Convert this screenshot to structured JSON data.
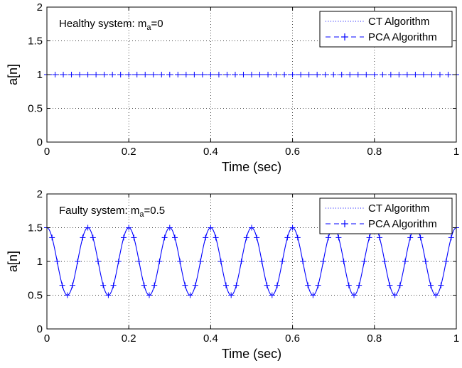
{
  "chart_data": [
    {
      "type": "line",
      "annotation": {
        "prefix": "Healthy system: m",
        "sub": "a",
        "suffix": "=0"
      },
      "xlabel": "Time (sec)",
      "ylabel": "a[n]",
      "xlim": [
        0,
        1
      ],
      "ylim": [
        0,
        2
      ],
      "xticks": [
        "0",
        "0.2",
        "0.4",
        "0.6",
        "0.8",
        "1"
      ],
      "yticks": [
        "0",
        "0.5",
        "1",
        "1.5",
        "2"
      ],
      "grid": true,
      "legend_position": "top-right",
      "series": [
        {
          "name": "CT Algorithm",
          "style": "dotted",
          "color": "#0000ff",
          "function": "constant",
          "offset": 1,
          "amplitude": 0,
          "frequency_hz": 10,
          "x_range": [
            0,
            1
          ]
        },
        {
          "name": "PCA Algorithm",
          "style": "dashed-plus",
          "color": "#0000ff",
          "function": "constant",
          "offset": 1,
          "amplitude": 0,
          "frequency_hz": 10,
          "x_range": [
            0,
            1
          ],
          "marker_step": 0.02
        }
      ]
    },
    {
      "type": "line",
      "annotation": {
        "prefix": "Faulty system: m",
        "sub": "a",
        "suffix": "=0.5"
      },
      "xlabel": "Time (sec)",
      "ylabel": "a[n]",
      "xlim": [
        0,
        1
      ],
      "ylim": [
        0,
        2
      ],
      "xticks": [
        "0",
        "0.2",
        "0.4",
        "0.6",
        "0.8",
        "1"
      ],
      "yticks": [
        "0",
        "0.5",
        "1",
        "1.5",
        "2"
      ],
      "grid": true,
      "legend_position": "top-right",
      "series": [
        {
          "name": "CT Algorithm",
          "style": "solid",
          "color": "#0000ff",
          "function": "1 + 0.5*cos(2*pi*10*t)",
          "offset": 1,
          "amplitude": 0.5,
          "frequency_hz": 10,
          "x_range": [
            0,
            1
          ]
        },
        {
          "name": "PCA Algorithm",
          "style": "plus-markers",
          "color": "#0000ff",
          "function": "1 + 0.5*cos(2*pi*10*t)",
          "offset": 1,
          "amplitude": 0.5,
          "frequency_hz": 10,
          "x_range": [
            0,
            1
          ],
          "marker_step": 0.0125
        }
      ]
    }
  ]
}
